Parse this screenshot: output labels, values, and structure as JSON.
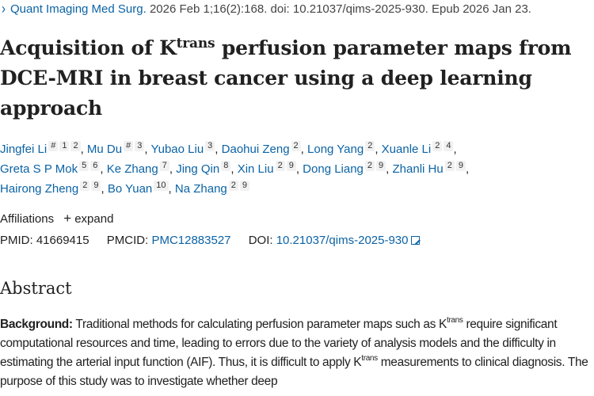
{
  "citation": {
    "journal": "Quant Imaging Med Surg.",
    "details": "2026 Feb 1;16(2):168. doi: 10.21037/qims-2025-930. Epub 2026 Jan 23."
  },
  "title": {
    "before": "Acquisition of K",
    "sup": "trans",
    "after": " perfusion parameter maps from DCE-MRI in breast cancer using a deep learning approach"
  },
  "authors": [
    {
      "name": "Jingfei Li",
      "affs": [
        "#",
        "1",
        "2"
      ]
    },
    {
      "name": "Mu Du",
      "affs": [
        "#",
        "3"
      ]
    },
    {
      "name": "Yubao Liu",
      "affs": [
        "3"
      ]
    },
    {
      "name": "Daohui Zeng",
      "affs": [
        "2"
      ]
    },
    {
      "name": "Long Yang",
      "affs": [
        "2"
      ]
    },
    {
      "name": "Xuanle Li",
      "affs": [
        "2",
        "4"
      ]
    },
    {
      "name": "Greta S P Mok",
      "affs": [
        "5",
        "6"
      ]
    },
    {
      "name": "Ke Zhang",
      "affs": [
        "7"
      ]
    },
    {
      "name": "Jing Qin",
      "affs": [
        "8"
      ]
    },
    {
      "name": "Xin Liu",
      "affs": [
        "2",
        "9"
      ]
    },
    {
      "name": "Dong Liang",
      "affs": [
        "2",
        "9"
      ]
    },
    {
      "name": "Zhanli Hu",
      "affs": [
        "2",
        "9"
      ]
    },
    {
      "name": "Hairong Zheng",
      "affs": [
        "2",
        "9"
      ]
    },
    {
      "name": "Bo Yuan",
      "affs": [
        "10"
      ]
    },
    {
      "name": "Na Zhang",
      "affs": [
        "2",
        "9"
      ]
    }
  ],
  "affiliations": {
    "label": "Affiliations",
    "toggle": "expand"
  },
  "ids": {
    "pmid_label": "PMID:",
    "pmid": "41669415",
    "pmcid_label": "PMCID:",
    "pmcid": "PMC12883527",
    "doi_label": "DOI:",
    "doi": "10.21037/qims-2025-930"
  },
  "abstract": {
    "heading": "Abstract",
    "background_label": "Background:",
    "seg1": " Traditional methods for calculating perfusion parameter maps such as K",
    "sup1": "trans",
    "seg2": " require significant computational resources and time, leading to errors due to the variety of analysis models and the difficulty in estimating the arterial input function (AIF). Thus, it is difficult to apply K",
    "sup2": "trans",
    "seg3": " measurements to clinical diagnosis. The purpose of this study was to investigate whether deep"
  }
}
